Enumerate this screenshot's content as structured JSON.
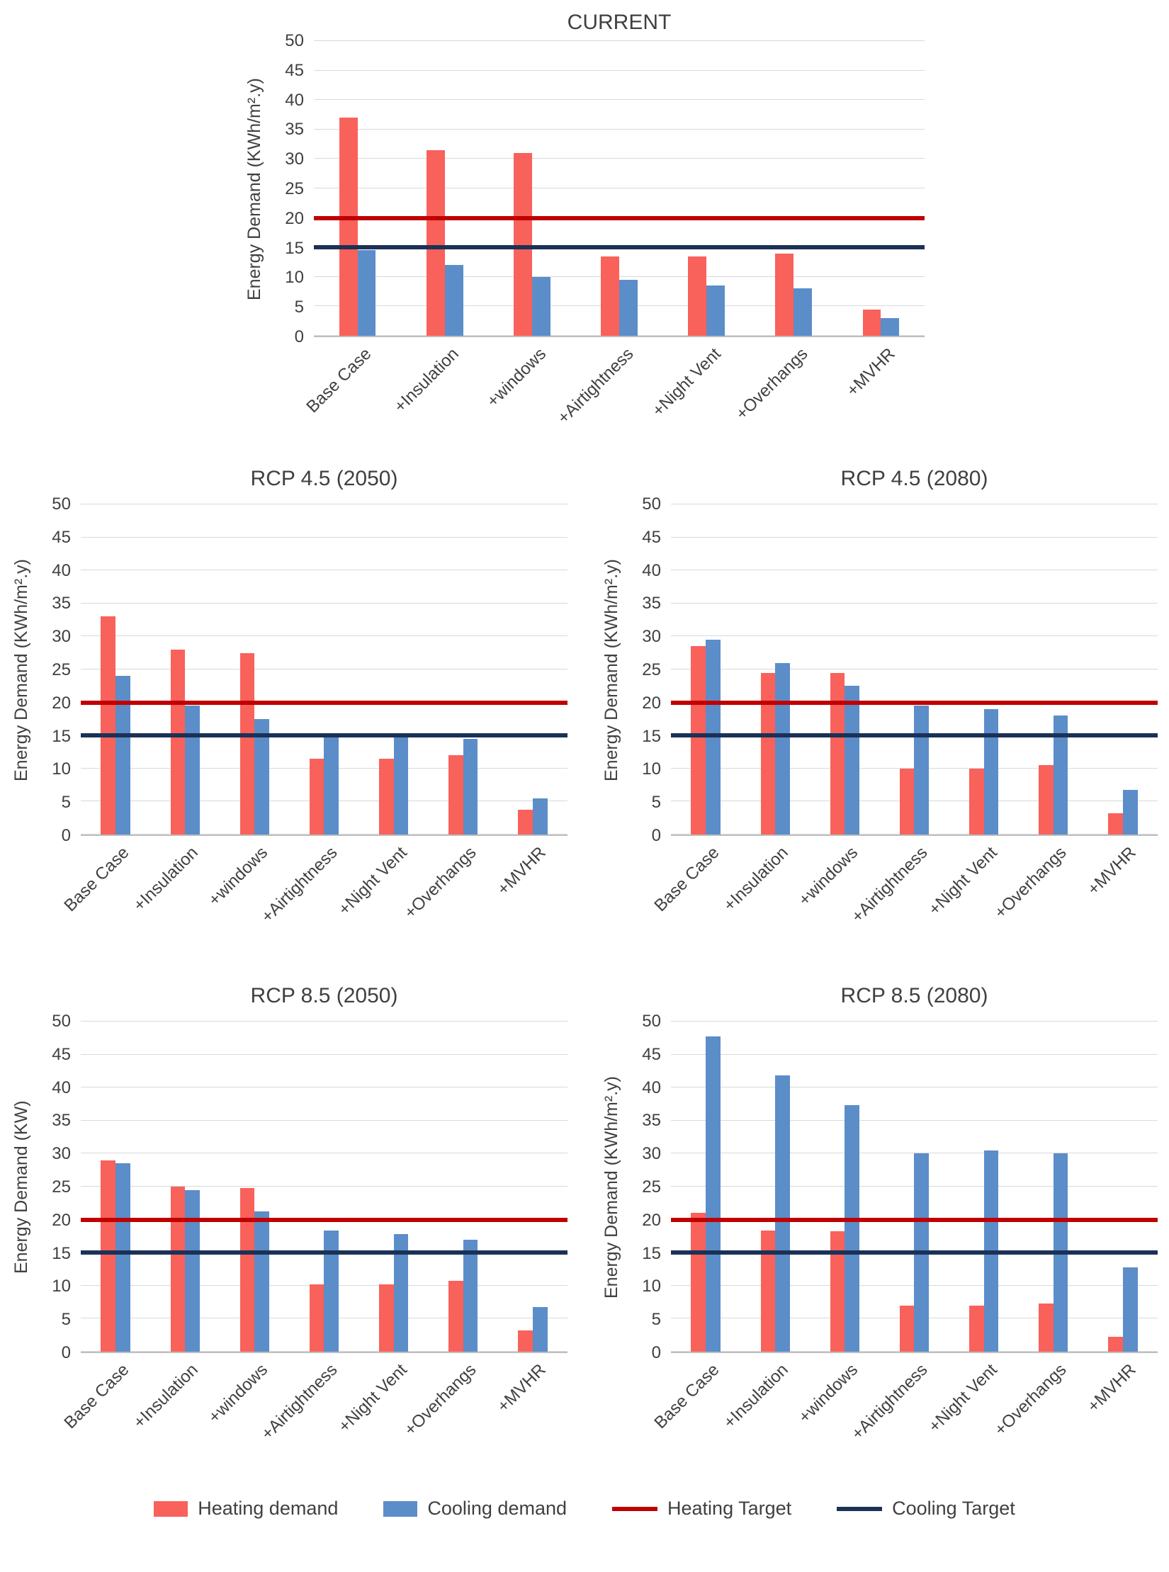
{
  "colors": {
    "heating_bar": "#F9615B",
    "cooling_bar": "#5B8DC9",
    "heating_target": "#C00000",
    "cooling_target": "#1B3156",
    "gridline": "#D9D9D9",
    "axis": "#BFBFBF",
    "text": "#404040"
  },
  "legend": {
    "items": [
      {
        "label": "Heating demand",
        "type": "bar",
        "color": "#F9615B"
      },
      {
        "label": "Cooling demand",
        "type": "bar",
        "color": "#5B8DC9"
      },
      {
        "label": "Heating Target",
        "type": "line",
        "color": "#C00000"
      },
      {
        "label": "Cooling Target",
        "type": "line",
        "color": "#1B3156"
      }
    ]
  },
  "chart_data": [
    {
      "type": "bar",
      "title": "CURRENT",
      "ylabel": "Energy Demand (KWh/m².y)",
      "ylim": [
        0,
        50
      ],
      "ytick_step": 5,
      "grid": true,
      "categories": [
        "Base Case",
        "+Insulation",
        "+windows",
        "+Airtightness",
        "+Night Vent",
        "+Overhangs",
        "+MVHR"
      ],
      "series": [
        {
          "name": "Heating demand",
          "color": "#F9615B",
          "values": [
            37,
            31.5,
            31,
            13.5,
            13.5,
            14,
            4.5
          ]
        },
        {
          "name": "Cooling demand",
          "color": "#5B8DC9",
          "values": [
            14.5,
            12,
            10,
            9.5,
            8.5,
            8,
            3
          ]
        }
      ],
      "target_lines": [
        {
          "name": "Heating Target",
          "value": 20,
          "color": "#C00000"
        },
        {
          "name": "Cooling Target",
          "value": 15,
          "color": "#1B3156"
        }
      ]
    },
    {
      "type": "bar",
      "title": "RCP 4.5 (2050)",
      "ylabel": "Energy Demand (KWh/m².y)",
      "ylim": [
        0,
        50
      ],
      "ytick_step": 5,
      "grid": true,
      "categories": [
        "Base Case",
        "+Insulation",
        "+windows",
        "+Airtightness",
        "+Night Vent",
        "+Overhangs",
        "+MVHR"
      ],
      "series": [
        {
          "name": "Heating demand",
          "color": "#F9615B",
          "values": [
            33,
            28,
            27.5,
            11.5,
            11.5,
            12,
            3.8
          ]
        },
        {
          "name": "Cooling demand",
          "color": "#5B8DC9",
          "values": [
            24,
            19.5,
            17.5,
            15,
            15,
            14.5,
            5.5
          ]
        }
      ],
      "target_lines": [
        {
          "name": "Heating Target",
          "value": 20,
          "color": "#C00000"
        },
        {
          "name": "Cooling Target",
          "value": 15,
          "color": "#1B3156"
        }
      ]
    },
    {
      "type": "bar",
      "title": "RCP 4.5 (2080)",
      "ylabel": "Energy Demand (KWh/m².y)",
      "ylim": [
        0,
        50
      ],
      "ytick_step": 5,
      "grid": true,
      "categories": [
        "Base Case",
        "+Insulation",
        "+windows",
        "+Airtightness",
        "+Night Vent",
        "+Overhangs",
        "+MVHR"
      ],
      "series": [
        {
          "name": "Heating demand",
          "color": "#F9615B",
          "values": [
            28.5,
            24.5,
            24.5,
            10,
            10,
            10.5,
            3.2
          ]
        },
        {
          "name": "Cooling demand",
          "color": "#5B8DC9",
          "values": [
            29.5,
            26,
            22.5,
            19.5,
            19,
            18,
            6.8
          ]
        }
      ],
      "target_lines": [
        {
          "name": "Heating Target",
          "value": 20,
          "color": "#C00000"
        },
        {
          "name": "Cooling Target",
          "value": 15,
          "color": "#1B3156"
        }
      ]
    },
    {
      "type": "bar",
      "title": "RCP 8.5 (2050)",
      "ylabel": "Energy Demand (KW)",
      "ylim": [
        0,
        50
      ],
      "ytick_step": 5,
      "grid": true,
      "categories": [
        "Base Case",
        "+Insulation",
        "+windows",
        "+Airtightness",
        "+Night Vent",
        "+Overhangs",
        "+MVHR"
      ],
      "series": [
        {
          "name": "Heating demand",
          "color": "#F9615B",
          "values": [
            29,
            25,
            24.8,
            10.2,
            10.2,
            10.7,
            3.2
          ]
        },
        {
          "name": "Cooling demand",
          "color": "#5B8DC9",
          "values": [
            28.5,
            24.5,
            21.2,
            18.3,
            17.8,
            17,
            6.8
          ]
        }
      ],
      "target_lines": [
        {
          "name": "Heating Target",
          "value": 20,
          "color": "#C00000"
        },
        {
          "name": "Cooling Target",
          "value": 15,
          "color": "#1B3156"
        }
      ]
    },
    {
      "type": "bar",
      "title": "RCP 8.5 (2080)",
      "ylabel": "Energy Demand (KWh/m².y)",
      "ylim": [
        0,
        50
      ],
      "ytick_step": 5,
      "grid": true,
      "categories": [
        "Base Case",
        "+Insulation",
        "+windows",
        "+Airtightness",
        "+Night Vent",
        "+Overhangs",
        "+MVHR"
      ],
      "series": [
        {
          "name": "Heating demand",
          "color": "#F9615B",
          "values": [
            21,
            18.3,
            18.2,
            7,
            7,
            7.3,
            2.3
          ]
        },
        {
          "name": "Cooling demand",
          "color": "#5B8DC9",
          "values": [
            47.8,
            41.8,
            37.3,
            30,
            30.5,
            30,
            12.8
          ]
        }
      ],
      "target_lines": [
        {
          "name": "Heating Target",
          "value": 20,
          "color": "#C00000"
        },
        {
          "name": "Cooling Target",
          "value": 15,
          "color": "#1B3156"
        }
      ]
    }
  ]
}
